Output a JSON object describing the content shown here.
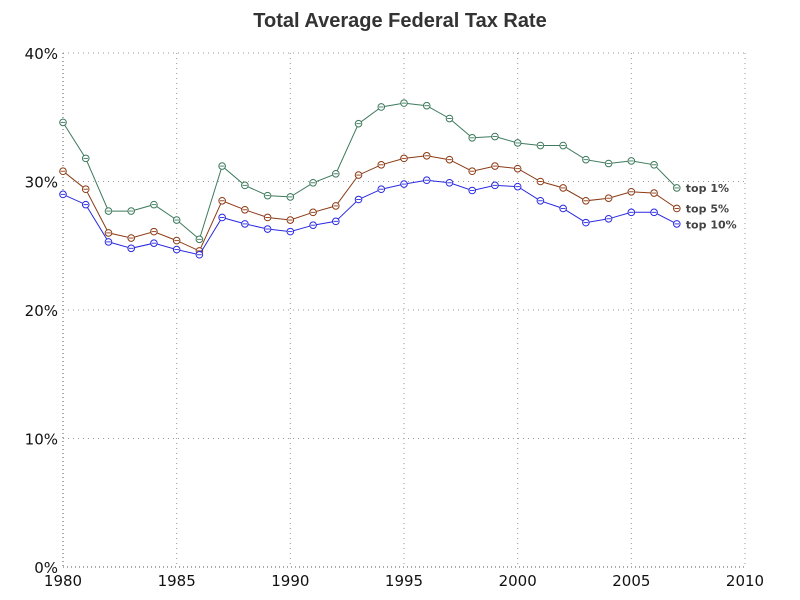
{
  "chart_data": {
    "type": "line",
    "title": "Total Average Federal Tax Rate",
    "xlabel": "",
    "ylabel": "",
    "xlim": [
      1980,
      2010
    ],
    "ylim": [
      0,
      40
    ],
    "x_ticks": [
      1980,
      1985,
      1990,
      1995,
      2000,
      2005,
      2010
    ],
    "y_ticks": [
      0,
      10,
      20,
      30,
      40
    ],
    "y_tick_labels": [
      "0%",
      "10%",
      "20%",
      "30%",
      "40%"
    ],
    "grid": true,
    "legend": "inline-right",
    "x": [
      1980,
      1981,
      1982,
      1983,
      1984,
      1985,
      1986,
      1987,
      1988,
      1989,
      1990,
      1991,
      1992,
      1993,
      1994,
      1995,
      1996,
      1997,
      1998,
      1999,
      2000,
      2001,
      2002,
      2003,
      2004,
      2005,
      2006,
      2007
    ],
    "series": [
      {
        "name": "top 1%",
        "color": "#3d7a5c",
        "values": [
          34.6,
          31.8,
          27.7,
          27.7,
          28.2,
          27.0,
          25.5,
          31.2,
          29.7,
          28.9,
          28.8,
          29.9,
          30.6,
          34.5,
          35.8,
          36.1,
          35.9,
          34.9,
          33.4,
          33.5,
          33.0,
          32.8,
          32.8,
          31.7,
          31.4,
          31.6,
          31.3,
          29.5
        ]
      },
      {
        "name": "top 5%",
        "color": "#8b3a14",
        "values": [
          30.8,
          29.4,
          26.0,
          25.6,
          26.1,
          25.4,
          24.6,
          28.5,
          27.8,
          27.2,
          27.0,
          27.6,
          28.1,
          30.5,
          31.3,
          31.8,
          32.0,
          31.7,
          30.8,
          31.2,
          31.0,
          30.0,
          29.5,
          28.5,
          28.7,
          29.2,
          29.1,
          27.9
        ]
      },
      {
        "name": "top 10%",
        "color": "#2a2ae0",
        "values": [
          29.0,
          28.2,
          25.3,
          24.8,
          25.2,
          24.7,
          24.3,
          27.2,
          26.7,
          26.3,
          26.1,
          26.6,
          26.9,
          28.6,
          29.4,
          29.8,
          30.1,
          29.9,
          29.3,
          29.7,
          29.6,
          28.5,
          27.9,
          26.8,
          27.1,
          27.6,
          27.6,
          26.7
        ]
      }
    ]
  }
}
